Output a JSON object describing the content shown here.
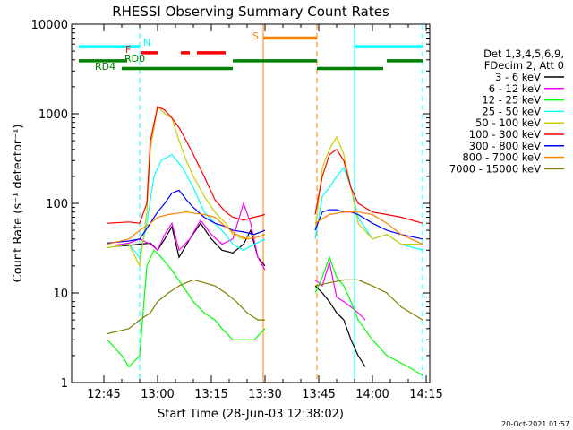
{
  "chart_data": {
    "type": "line",
    "title": "RHESSI Observing Summary Count Rates",
    "xlabel": "Start Time (28-Jun-03 12:38:02)",
    "ylabel": "Count Rate (s⁻¹ detector⁻¹)",
    "yscale": "log",
    "ylim": [
      1,
      10000
    ],
    "xlim": [
      -2,
      98
    ],
    "x_units": "minutes after 12:38:02",
    "grid": false,
    "legend_position": "right",
    "legend_header": [
      "Det 1,3,4,5,6,9,",
      "FDecim 2, Att 0"
    ],
    "y_ticks": [
      {
        "label": "1",
        "value": 1
      },
      {
        "label": "10",
        "value": 10
      },
      {
        "label": "100",
        "value": 100
      },
      {
        "label": "1000",
        "value": 1000
      },
      {
        "label": "10000",
        "value": 10000
      }
    ],
    "x_ticks": [
      {
        "label": "12:45",
        "value": 7
      },
      {
        "label": "13:00",
        "value": 22
      },
      {
        "label": "13:15",
        "value": 37
      },
      {
        "label": "13:30",
        "value": 52
      },
      {
        "label": "13:45",
        "value": 67
      },
      {
        "label": "14:00",
        "value": 82
      },
      {
        "label": "14:15",
        "value": 97
      }
    ],
    "status_bars": [
      {
        "label": "N",
        "color": "#00ffff",
        "level": 5600,
        "segments": [
          [
            0,
            17
          ],
          [
            77,
            96
          ]
        ]
      },
      {
        "label": "S",
        "color": "#ff8000",
        "level": 7000,
        "segments": [
          [
            51.5,
            66.5
          ]
        ]
      },
      {
        "label": "F",
        "color": "#ff0000",
        "level": 4800,
        "segments": [
          [
            17.5,
            22
          ],
          [
            28.5,
            31
          ],
          [
            33,
            41
          ]
        ]
      },
      {
        "label": "RD0",
        "color": "#008000",
        "level": 3900,
        "segments": [
          [
            0,
            13.5
          ],
          [
            43,
            66.5
          ],
          [
            86,
            96
          ]
        ]
      },
      {
        "label": "RD4",
        "color": "#008000",
        "level": 3200,
        "segments": [
          [
            12,
            43
          ],
          [
            66.5,
            85
          ]
        ]
      }
    ],
    "vertical_markers": [
      {
        "x": 17,
        "color": "#00ffff",
        "style": "dashed"
      },
      {
        "x": 51.5,
        "color": "#ff8000",
        "style": "solid"
      },
      {
        "x": 66.5,
        "color": "#ff8000",
        "style": "dashed"
      },
      {
        "x": 77,
        "color": "#00ffff",
        "style": "solid"
      },
      {
        "x": 96,
        "color": "#00ffff",
        "style": "dashed"
      }
    ],
    "series": [
      {
        "name": "3 - 6 keV",
        "color": "#000000",
        "x": [
          -2,
          10,
          14,
          17,
          20,
          22,
          24,
          26,
          28,
          31,
          34,
          37,
          40,
          43,
          46,
          48,
          50,
          52,
          66,
          68,
          70,
          72,
          74,
          76,
          78,
          80
        ],
        "y": [
          32,
          33,
          34,
          35,
          36,
          30,
          40,
          55,
          25,
          40,
          60,
          40,
          30,
          28,
          35,
          50,
          25,
          20,
          12,
          10,
          8,
          6,
          5,
          3,
          2,
          1.5
        ]
      },
      {
        "name": "6 - 12 keV",
        "color": "#ff00ff",
        "x": [
          -2,
          10,
          14,
          17,
          20,
          22,
          24,
          26,
          28,
          31,
          34,
          37,
          40,
          43,
          46,
          48,
          50,
          52,
          66,
          68,
          70,
          72,
          74,
          76,
          78,
          80
        ],
        "y": [
          33,
          34,
          36,
          40,
          35,
          30,
          45,
          60,
          30,
          40,
          65,
          45,
          35,
          40,
          100,
          60,
          25,
          18,
          14,
          12,
          22,
          9,
          8,
          7,
          6,
          5
        ]
      },
      {
        "name": "12 - 25 keV",
        "color": "#00ff00",
        "x": [
          -2,
          8,
          12,
          14,
          17,
          19,
          21,
          23,
          26,
          29,
          32,
          35,
          38,
          40,
          43,
          46,
          49,
          52,
          66,
          68,
          70,
          72,
          74,
          76,
          78,
          82,
          86,
          92,
          96
        ],
        "y": [
          3,
          3,
          2,
          1.5,
          2,
          20,
          30,
          25,
          18,
          12,
          8,
          6,
          5,
          4,
          3,
          3,
          3,
          4,
          10,
          15,
          25,
          15,
          12,
          8,
          5,
          3,
          2,
          1.5,
          1.2
        ]
      },
      {
        "name": "25 - 50 keV",
        "color": "#00ffff",
        "x": [
          -2,
          8,
          14,
          17,
          19,
          21,
          23,
          26,
          29,
          32,
          35,
          38,
          41,
          43,
          46,
          49,
          52,
          66,
          68,
          70,
          72,
          74,
          76,
          78,
          82,
          86,
          90,
          96
        ],
        "y": [
          30,
          32,
          35,
          25,
          60,
          200,
          300,
          350,
          250,
          150,
          80,
          60,
          45,
          35,
          30,
          35,
          40,
          40,
          120,
          150,
          200,
          250,
          150,
          70,
          40,
          45,
          35,
          30
        ]
      },
      {
        "name": "50 - 100 keV",
        "color": "#cccc00",
        "x": [
          -2,
          8,
          14,
          17,
          19,
          20,
          22,
          24,
          26,
          28,
          30,
          32,
          35,
          38,
          41,
          43,
          46,
          49,
          52,
          66,
          68,
          70,
          72,
          74,
          76,
          78,
          82,
          86,
          90,
          96
        ],
        "y": [
          30,
          32,
          35,
          20,
          80,
          400,
          1200,
          1000,
          900,
          500,
          300,
          200,
          120,
          80,
          60,
          45,
          40,
          45,
          50,
          50,
          250,
          400,
          550,
          350,
          150,
          60,
          40,
          45,
          35,
          35
        ]
      },
      {
        "name": "100 - 300 keV",
        "color": "#ff0000",
        "x": [
          -2,
          8,
          14,
          17,
          19,
          20,
          22,
          24,
          26,
          28,
          30,
          32,
          35,
          38,
          41,
          43,
          46,
          49,
          52,
          66,
          68,
          70,
          72,
          74,
          76,
          78,
          82,
          86,
          90,
          96
        ],
        "y": [
          58,
          60,
          62,
          60,
          100,
          500,
          1200,
          1100,
          900,
          700,
          500,
          350,
          200,
          110,
          80,
          70,
          65,
          70,
          75,
          75,
          200,
          350,
          400,
          300,
          150,
          100,
          80,
          75,
          70,
          60
        ]
      },
      {
        "name": "300 - 800 keV",
        "color": "#0000ff",
        "x": [
          -2,
          8,
          14,
          17,
          20,
          22,
          24,
          26,
          28,
          30,
          32,
          35,
          38,
          41,
          43,
          46,
          49,
          52,
          66,
          68,
          70,
          72,
          74,
          76,
          78,
          82,
          86,
          90,
          96
        ],
        "y": [
          35,
          36,
          38,
          40,
          60,
          80,
          100,
          130,
          140,
          110,
          90,
          70,
          60,
          55,
          50,
          48,
          45,
          50,
          50,
          80,
          85,
          85,
          80,
          80,
          75,
          60,
          50,
          45,
          40
        ]
      },
      {
        "name": "800 - 7000 keV",
        "color": "#ff8000",
        "x": [
          -2,
          8,
          14,
          17,
          20,
          22,
          25,
          28,
          30,
          32,
          35,
          38,
          41,
          44,
          47,
          50,
          52,
          66,
          70,
          74,
          78,
          82,
          86,
          90,
          96
        ],
        "y": [
          34,
          35,
          40,
          50,
          60,
          70,
          75,
          78,
          80,
          78,
          75,
          70,
          55,
          45,
          40,
          42,
          45,
          60,
          75,
          80,
          80,
          75,
          60,
          45,
          35
        ]
      },
      {
        "name": "7000 - 15000 keV",
        "color": "#808000",
        "x": [
          -2,
          8,
          14,
          17,
          20,
          22,
          25,
          28,
          30,
          32,
          35,
          38,
          41,
          44,
          47,
          50,
          52,
          66,
          70,
          74,
          78,
          82,
          86,
          90,
          96
        ],
        "y": [
          3.5,
          3.5,
          4,
          5,
          6,
          8,
          10,
          12,
          13,
          14,
          13,
          12,
          10,
          8,
          6,
          5,
          5,
          12,
          13,
          14,
          14,
          12,
          10,
          7,
          5
        ]
      }
    ]
  },
  "footer": {
    "timestamp": "20-Oct-2021 01:57"
  }
}
